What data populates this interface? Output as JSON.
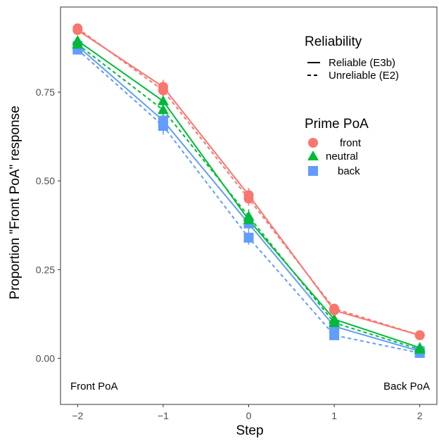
{
  "chart_data": {
    "type": "line",
    "xlabel": "Step",
    "ylabel": "Proportion \"Front PoA\" response",
    "x": [
      -2,
      -1,
      0,
      1,
      2
    ],
    "x_tick_labels": [
      "−2",
      "−1",
      "0",
      "1",
      "2"
    ],
    "xlim": [
      -2.2,
      2.2
    ],
    "ylim": [
      -0.13,
      0.99
    ],
    "y_ticks": [
      0.0,
      0.25,
      0.5,
      0.75
    ],
    "y_tick_labels": [
      "0.00",
      "0.25",
      "0.50",
      "0.75"
    ],
    "grid": false,
    "legend_placement": "top-right",
    "annotations": [
      {
        "text": "Front PoA",
        "position": "bottom-left"
      },
      {
        "text": "Back PoA",
        "position": "bottom-right"
      }
    ],
    "legend": {
      "reliability_title": "Reliability",
      "reliability_items": [
        {
          "label": "Reliable (E3b)",
          "linetype": "solid"
        },
        {
          "label": "Unreliable (E2)",
          "linetype": "dashed"
        }
      ],
      "prime_title": "Prime PoA",
      "prime_items": [
        {
          "label": "front",
          "color": "#f8766d",
          "shape": "circle"
        },
        {
          "label": "neutral",
          "color": "#00ba38",
          "shape": "triangle"
        },
        {
          "label": "back",
          "color": "#619cff",
          "shape": "square"
        }
      ]
    },
    "series": [
      {
        "prime": "front",
        "reliability": "Reliable (E3b)",
        "color": "#f8766d",
        "shape": "circle",
        "dashed": false,
        "values": [
          0.925,
          0.765,
          0.46,
          0.135,
          0.065
        ],
        "errors": [
          0.012,
          0.02,
          0.02,
          0.015,
          0.008
        ]
      },
      {
        "prime": "front",
        "reliability": "Unreliable (E2)",
        "color": "#f8766d",
        "shape": "circle",
        "dashed": true,
        "values": [
          0.93,
          0.755,
          0.45,
          0.14,
          0.065
        ],
        "errors": [
          0.01,
          0.018,
          0.02,
          0.012,
          0.008
        ]
      },
      {
        "prime": "neutral",
        "reliability": "Reliable (E3b)",
        "color": "#00ba38",
        "shape": "triangle",
        "dashed": false,
        "values": [
          0.895,
          0.725,
          0.39,
          0.11,
          0.03
        ],
        "errors": [
          0.012,
          0.02,
          0.02,
          0.012,
          0.006
        ]
      },
      {
        "prime": "neutral",
        "reliability": "Unreliable (E2)",
        "color": "#00ba38",
        "shape": "triangle",
        "dashed": true,
        "values": [
          0.885,
          0.7,
          0.4,
          0.1,
          0.025
        ],
        "errors": [
          0.012,
          0.02,
          0.02,
          0.012,
          0.006
        ]
      },
      {
        "prime": "back",
        "reliability": "Reliable (E3b)",
        "color": "#619cff",
        "shape": "square",
        "dashed": false,
        "values": [
          0.88,
          0.67,
          0.38,
          0.09,
          0.02
        ],
        "errors": [
          0.012,
          0.02,
          0.02,
          0.012,
          0.006
        ]
      },
      {
        "prime": "back",
        "reliability": "Unreliable (E2)",
        "color": "#619cff",
        "shape": "square",
        "dashed": true,
        "values": [
          0.87,
          0.655,
          0.34,
          0.065,
          0.015
        ],
        "errors": [
          0.012,
          0.025,
          0.02,
          0.012,
          0.006
        ]
      }
    ]
  }
}
